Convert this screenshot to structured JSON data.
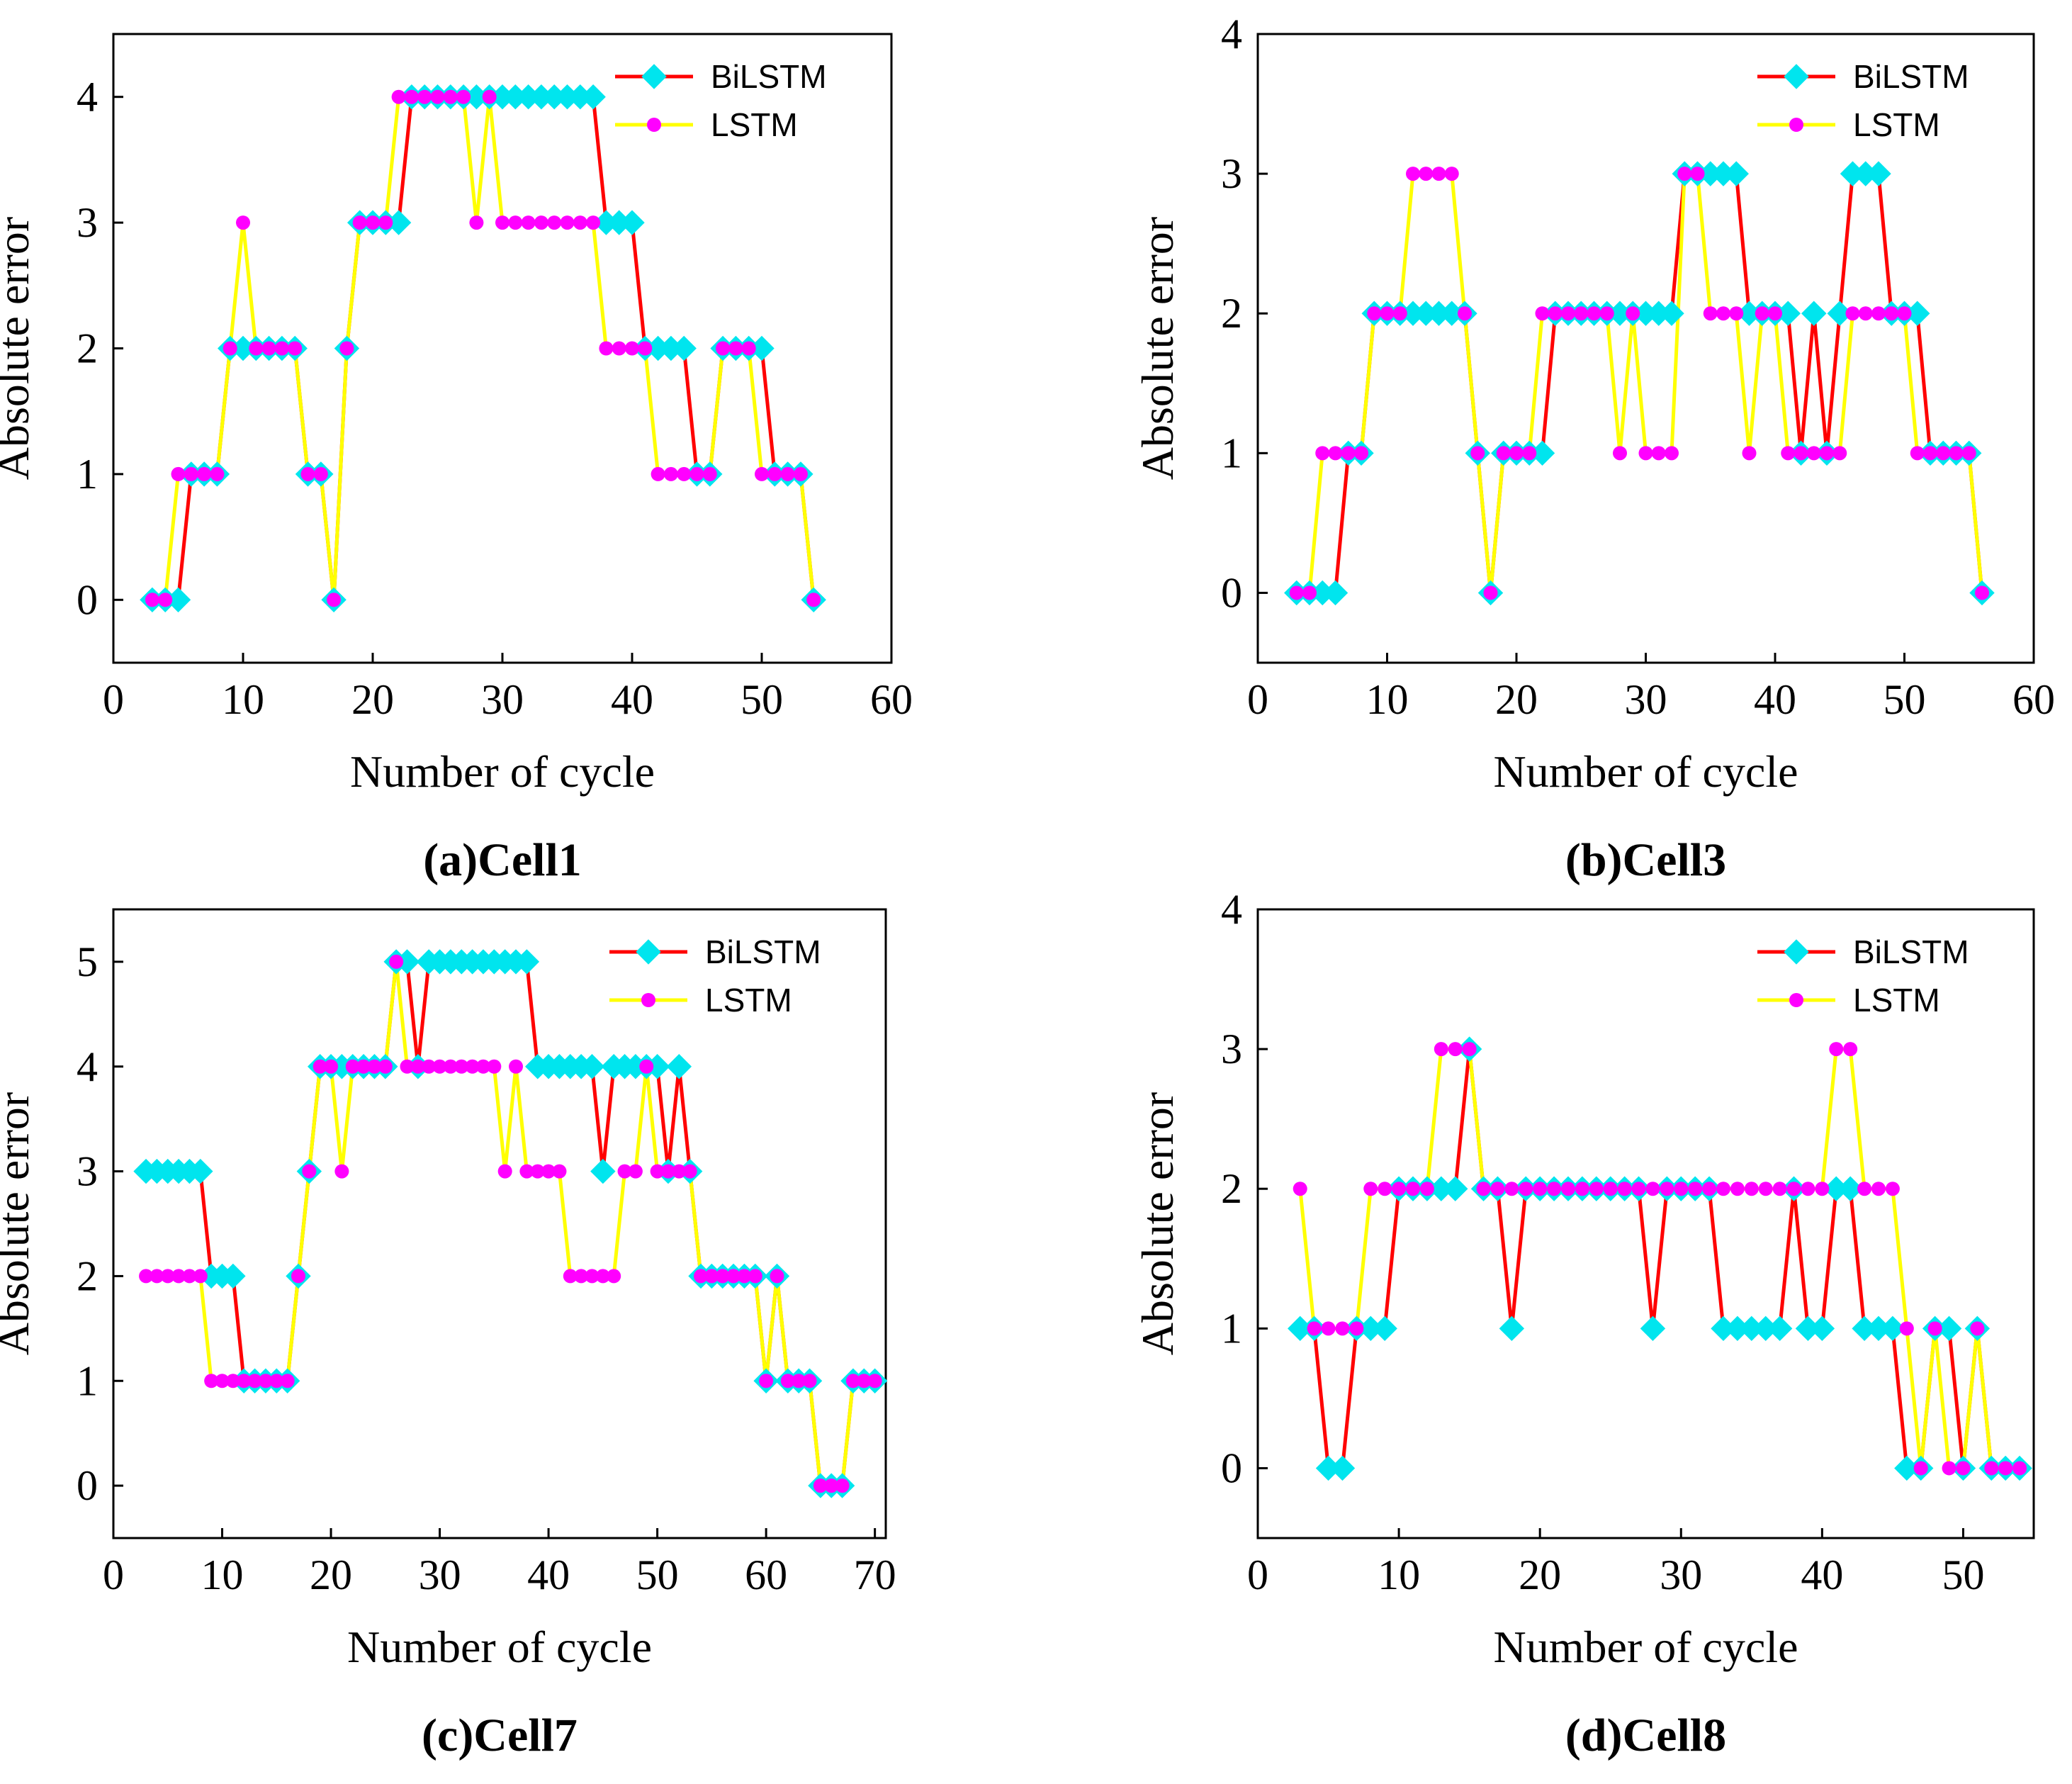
{
  "colors": {
    "bilstm_line": "#ff0000",
    "bilstm_marker": "#00e5ee",
    "lstm_line": "#ffff00",
    "lstm_marker": "#ff00ff"
  },
  "chart_data": [
    {
      "type": "line",
      "caption": "(a)Cell1",
      "xlabel": "Number of cycle",
      "ylabel": "Absolute error",
      "xlim": [
        0,
        60
      ],
      "ylim": [
        -0.5,
        4.5
      ],
      "xticks": [
        0,
        10,
        20,
        30,
        40,
        50,
        60
      ],
      "yticks": [
        0,
        1,
        2,
        3,
        4
      ],
      "legend_position": "top-right",
      "x": [
        3,
        4,
        5,
        6,
        7,
        8,
        9,
        10,
        11,
        12,
        13,
        14,
        15,
        16,
        17,
        18,
        19,
        20,
        21,
        22,
        23,
        24,
        25,
        26,
        27,
        28,
        29,
        30,
        31,
        32,
        33,
        34,
        35,
        36,
        37,
        38,
        39,
        40,
        41,
        42,
        43,
        44,
        45,
        46,
        47,
        48,
        49,
        50,
        51,
        52,
        53,
        54
      ],
      "series": [
        {
          "name": "BiLSTM",
          "values": [
            0,
            0,
            0,
            1,
            1,
            1,
            2,
            2,
            2,
            2,
            2,
            2,
            1,
            1,
            0,
            2,
            3,
            3,
            3,
            3,
            4,
            4,
            4,
            4,
            4,
            4,
            4,
            4,
            4,
            4,
            4,
            4,
            4,
            4,
            4,
            3,
            3,
            3,
            2,
            2,
            2,
            2,
            1,
            1,
            2,
            2,
            2,
            2,
            1,
            1,
            1,
            0
          ]
        },
        {
          "name": "LSTM",
          "values": [
            0,
            0,
            1,
            1,
            1,
            1,
            2,
            3,
            2,
            2,
            2,
            2,
            1,
            1,
            0,
            2,
            3,
            3,
            3,
            4,
            4,
            4,
            4,
            4,
            4,
            3,
            4,
            3,
            3,
            3,
            3,
            3,
            3,
            3,
            3,
            2,
            2,
            2,
            2,
            1,
            1,
            1,
            1,
            1,
            2,
            2,
            2,
            1,
            1,
            1,
            1,
            0
          ]
        }
      ]
    },
    {
      "type": "line",
      "caption": "(b)Cell3",
      "xlabel": "Number of cycle",
      "ylabel": "Absolute error",
      "xlim": [
        0,
        60
      ],
      "ylim": [
        -0.5,
        4
      ],
      "xticks": [
        0,
        10,
        20,
        30,
        40,
        50,
        60
      ],
      "yticks": [
        0,
        1,
        2,
        3,
        4
      ],
      "legend_position": "top-right",
      "x": [
        3,
        4,
        5,
        6,
        7,
        8,
        9,
        10,
        11,
        12,
        13,
        14,
        15,
        16,
        17,
        18,
        19,
        20,
        21,
        22,
        23,
        24,
        25,
        26,
        27,
        28,
        29,
        30,
        31,
        32,
        33,
        34,
        35,
        36,
        37,
        38,
        39,
        40,
        41,
        42,
        43,
        44,
        45,
        46,
        47,
        48,
        49,
        50,
        51,
        52,
        53,
        54,
        55,
        56
      ],
      "series": [
        {
          "name": "BiLSTM",
          "values": [
            0,
            0,
            0,
            0,
            1,
            1,
            2,
            2,
            2,
            2,
            2,
            2,
            2,
            2,
            1,
            0,
            1,
            1,
            1,
            1,
            2,
            2,
            2,
            2,
            2,
            2,
            2,
            2,
            2,
            2,
            3,
            3,
            3,
            3,
            3,
            2,
            2,
            2,
            2,
            1,
            2,
            1,
            2,
            3,
            3,
            3,
            2,
            2,
            2,
            1,
            1,
            1,
            1,
            0
          ]
        },
        {
          "name": "LSTM",
          "values": [
            0,
            0,
            1,
            1,
            1,
            1,
            2,
            2,
            2,
            3,
            3,
            3,
            3,
            2,
            1,
            0,
            1,
            1,
            1,
            2,
            2,
            2,
            2,
            2,
            2,
            1,
            2,
            1,
            1,
            1,
            3,
            3,
            2,
            2,
            2,
            1,
            2,
            2,
            1,
            1,
            1,
            1,
            1,
            2,
            2,
            2,
            2,
            2,
            1,
            1,
            1,
            1,
            1,
            0
          ]
        }
      ]
    },
    {
      "type": "line",
      "caption": "(c)Cell7",
      "xlabel": "Number of cycle",
      "ylabel": "Absolute error",
      "xlim": [
        0,
        71
      ],
      "ylim": [
        -0.5,
        5.5
      ],
      "xticks": [
        0,
        10,
        20,
        30,
        40,
        50,
        60,
        70
      ],
      "yticks": [
        0,
        1,
        2,
        3,
        4,
        5
      ],
      "legend_position": "top-right",
      "x": [
        3,
        4,
        5,
        6,
        7,
        8,
        9,
        10,
        11,
        12,
        13,
        14,
        15,
        16,
        17,
        18,
        19,
        20,
        21,
        22,
        23,
        24,
        25,
        26,
        27,
        28,
        29,
        30,
        31,
        32,
        33,
        34,
        35,
        36,
        37,
        38,
        39,
        40,
        41,
        42,
        43,
        44,
        45,
        46,
        47,
        48,
        49,
        50,
        51,
        52,
        53,
        54,
        55,
        56,
        57,
        58,
        59,
        60,
        61,
        62,
        63,
        64,
        65,
        66,
        67,
        68,
        69,
        70
      ],
      "series": [
        {
          "name": "BiLSTM",
          "values": [
            3,
            3,
            3,
            3,
            3,
            3,
            2,
            2,
            2,
            1,
            1,
            1,
            1,
            1,
            2,
            3,
            4,
            4,
            4,
            4,
            4,
            4,
            4,
            5,
            5,
            4,
            5,
            5,
            5,
            5,
            5,
            5,
            5,
            5,
            5,
            5,
            4,
            4,
            4,
            4,
            4,
            4,
            3,
            4,
            4,
            4,
            4,
            4,
            3,
            4,
            3,
            2,
            2,
            2,
            2,
            2,
            2,
            1,
            2,
            1,
            1,
            1,
            0,
            0,
            0,
            1,
            1,
            1
          ]
        },
        {
          "name": "LSTM",
          "values": [
            2,
            2,
            2,
            2,
            2,
            2,
            1,
            1,
            1,
            1,
            1,
            1,
            1,
            1,
            2,
            3,
            4,
            4,
            3,
            4,
            4,
            4,
            4,
            5,
            4,
            4,
            4,
            4,
            4,
            4,
            4,
            4,
            4,
            3,
            4,
            3,
            3,
            3,
            3,
            2,
            2,
            2,
            2,
            2,
            3,
            3,
            4,
            3,
            3,
            3,
            3,
            2,
            2,
            2,
            2,
            2,
            2,
            1,
            2,
            1,
            1,
            1,
            0,
            0,
            0,
            1,
            1,
            1
          ]
        }
      ]
    },
    {
      "type": "line",
      "caption": "(d)Cell8",
      "xlabel": "Number of cycle",
      "ylabel": "Absolute error",
      "xlim": [
        0,
        55
      ],
      "ylim": [
        -0.5,
        4
      ],
      "xticks": [
        0,
        10,
        20,
        30,
        40,
        50
      ],
      "yticks": [
        0,
        1,
        2,
        3,
        4
      ],
      "legend_position": "top-right",
      "x": [
        3,
        4,
        5,
        6,
        7,
        8,
        9,
        10,
        11,
        12,
        13,
        14,
        15,
        16,
        17,
        18,
        19,
        20,
        21,
        22,
        23,
        24,
        25,
        26,
        27,
        28,
        29,
        30,
        31,
        32,
        33,
        34,
        35,
        36,
        37,
        38,
        39,
        40,
        41,
        42,
        43,
        44,
        45,
        46,
        47,
        48,
        49,
        50,
        51,
        52,
        53,
        54
      ],
      "series": [
        {
          "name": "BiLSTM",
          "values": [
            1,
            1,
            0,
            0,
            1,
            1,
            1,
            2,
            2,
            2,
            2,
            2,
            3,
            2,
            2,
            1,
            2,
            2,
            2,
            2,
            2,
            2,
            2,
            2,
            2,
            1,
            2,
            2,
            2,
            2,
            1,
            1,
            1,
            1,
            1,
            2,
            1,
            1,
            2,
            2,
            1,
            1,
            1,
            0,
            0,
            1,
            1,
            0,
            1,
            0,
            0,
            0
          ]
        },
        {
          "name": "LSTM",
          "values": [
            2,
            1,
            1,
            1,
            1,
            2,
            2,
            2,
            2,
            2,
            3,
            3,
            3,
            2,
            2,
            2,
            2,
            2,
            2,
            2,
            2,
            2,
            2,
            2,
            2,
            2,
            2,
            2,
            2,
            2,
            2,
            2,
            2,
            2,
            2,
            2,
            2,
            2,
            3,
            3,
            2,
            2,
            2,
            1,
            0,
            1,
            0,
            0,
            1,
            0,
            0,
            0
          ]
        }
      ]
    }
  ]
}
